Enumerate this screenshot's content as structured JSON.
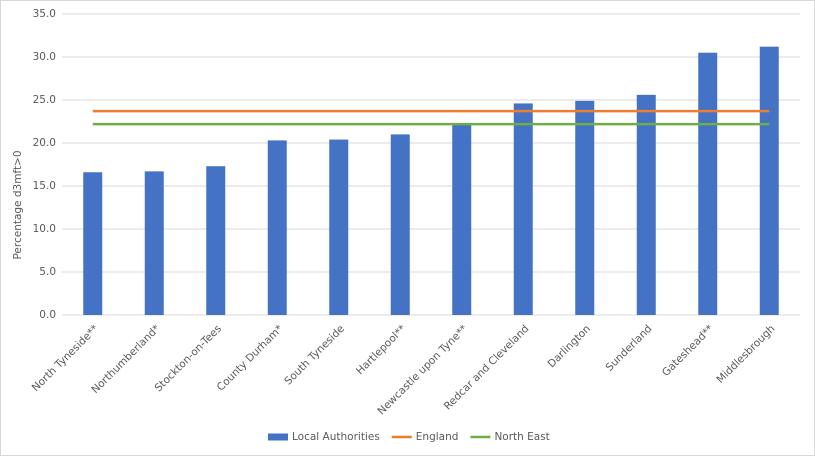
{
  "chart_data": {
    "type": "bar",
    "y_label": "Percentage d3mft>0",
    "categories": [
      "North Tyneside**",
      "Northumberland*",
      "Stockton-on-Tees",
      "County Durham*",
      "South Tyneside",
      "Hartlepool**",
      "Newcastle upon Tyne**",
      "Redcar and Cleveland",
      "Darlington",
      "Sunderland",
      "Gateshead**",
      "Middlesbrough"
    ],
    "series": [
      {
        "name": "Local Authorities",
        "type": "bar",
        "color": "#4472c4",
        "values": [
          16.6,
          16.7,
          17.3,
          20.3,
          20.4,
          21.0,
          22.1,
          24.6,
          24.9,
          25.6,
          30.5,
          31.2
        ]
      },
      {
        "name": "England",
        "type": "line",
        "color": "#ed7d31",
        "values": [
          23.7,
          23.7,
          23.7,
          23.7,
          23.7,
          23.7,
          23.7,
          23.7,
          23.7,
          23.7,
          23.7,
          23.7
        ]
      },
      {
        "name": "North East",
        "type": "line",
        "color": "#70ad47",
        "values": [
          22.2,
          22.2,
          22.2,
          22.2,
          22.2,
          22.2,
          22.2,
          22.2,
          22.2,
          22.2,
          22.2,
          22.2
        ]
      }
    ],
    "ylim": [
      0,
      35
    ],
    "yticks": [
      {
        "value": 0,
        "label": "0.0"
      },
      {
        "value": 5,
        "label": "5.0"
      },
      {
        "value": 10,
        "label": "10.0"
      },
      {
        "value": 15,
        "label": "15.0"
      },
      {
        "value": 20,
        "label": "20.0"
      },
      {
        "value": 25,
        "label": "25.0"
      },
      {
        "value": 30,
        "label": "30.0"
      },
      {
        "value": 35,
        "label": "35.0"
      }
    ],
    "grid": true,
    "legend": "bottom"
  }
}
